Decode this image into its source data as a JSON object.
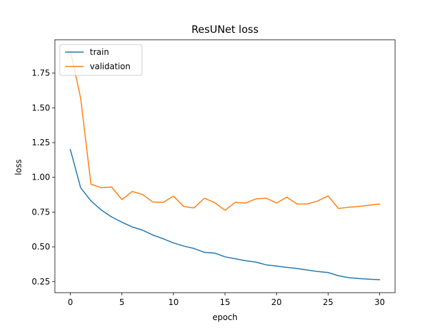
{
  "chart_data": {
    "type": "line",
    "title": "ResUNet loss",
    "xlabel": "epoch",
    "ylabel": "loss",
    "xlim": [
      -1.5,
      31.5
    ],
    "ylim": [
      0.17,
      1.99
    ],
    "xticks": [
      0,
      5,
      10,
      15,
      20,
      25,
      30
    ],
    "xtick_labels": [
      "0",
      "5",
      "10",
      "15",
      "20",
      "25",
      "30"
    ],
    "yticks": [
      0.25,
      0.5,
      0.75,
      1.0,
      1.25,
      1.5,
      1.75
    ],
    "ytick_labels": [
      "0.25",
      "0.50",
      "0.75",
      "1.00",
      "1.25",
      "1.50",
      "1.75"
    ],
    "grid": false,
    "legend_position": "upper left",
    "x": [
      0,
      1,
      2,
      3,
      4,
      5,
      6,
      7,
      8,
      9,
      10,
      11,
      12,
      13,
      14,
      15,
      16,
      17,
      18,
      19,
      20,
      21,
      22,
      23,
      24,
      25,
      26,
      27,
      28,
      29,
      30
    ],
    "series": [
      {
        "name": "train",
        "color": "#1f77b4",
        "values": [
          1.2,
          0.925,
          0.83,
          0.765,
          0.715,
          0.677,
          0.643,
          0.62,
          0.585,
          0.558,
          0.528,
          0.505,
          0.488,
          0.46,
          0.455,
          0.428,
          0.414,
          0.4,
          0.39,
          0.37,
          0.362,
          0.352,
          0.344,
          0.333,
          0.322,
          0.315,
          0.292,
          0.278,
          0.272,
          0.267,
          0.263
        ]
      },
      {
        "name": "validation",
        "color": "#ff7f0e",
        "values": [
          1.91,
          1.57,
          0.95,
          0.926,
          0.93,
          0.84,
          0.898,
          0.877,
          0.822,
          0.82,
          0.865,
          0.79,
          0.78,
          0.85,
          0.818,
          0.763,
          0.82,
          0.815,
          0.845,
          0.85,
          0.815,
          0.857,
          0.808,
          0.808,
          0.83,
          0.867,
          0.776,
          0.785,
          0.79,
          0.8,
          0.808
        ]
      }
    ]
  }
}
